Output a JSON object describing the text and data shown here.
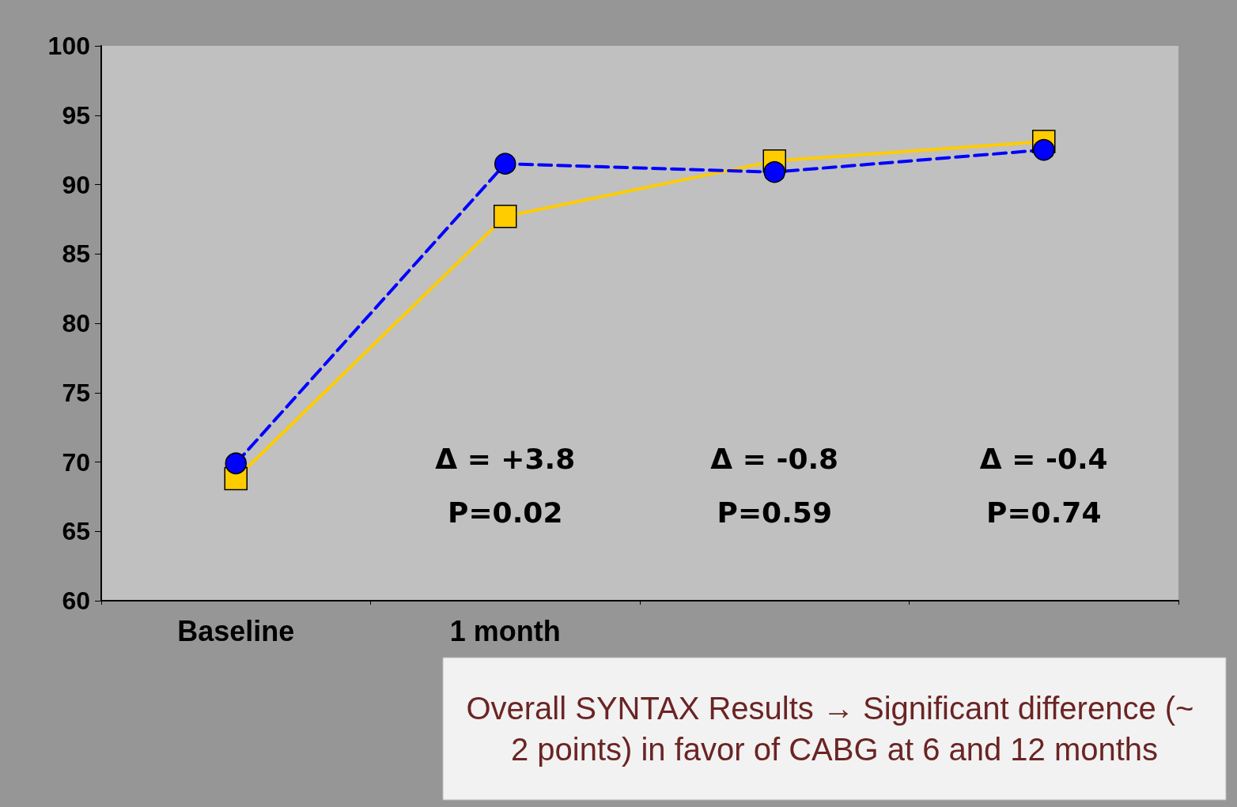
{
  "chart_data": {
    "type": "line",
    "categories": [
      "Baseline",
      "1 month",
      null,
      null
    ],
    "series": [
      {
        "color": "#ffcc00",
        "values": [
          68.8,
          87.7,
          91.7,
          93.1
        ],
        "marker": "square",
        "line_style": "solid"
      },
      {
        "color": "#0000ff",
        "values": [
          69.9,
          91.5,
          90.9,
          92.5
        ],
        "marker": "circle",
        "line_style": "dashed"
      }
    ],
    "ylim": [
      60,
      100
    ],
    "yticks": [
      60,
      65,
      70,
      75,
      80,
      85,
      90,
      95,
      100
    ],
    "grid": false,
    "annotations": [
      "Δ = +3.8",
      "P=0.02",
      "Δ = -0.8",
      "P=0.59",
      "Δ = -0.4",
      "P=0.74",
      "Overall SYNTAX Results → Significant difference (~ 2 points) in favor of CABG at 6 and 12 months"
    ]
  }
}
